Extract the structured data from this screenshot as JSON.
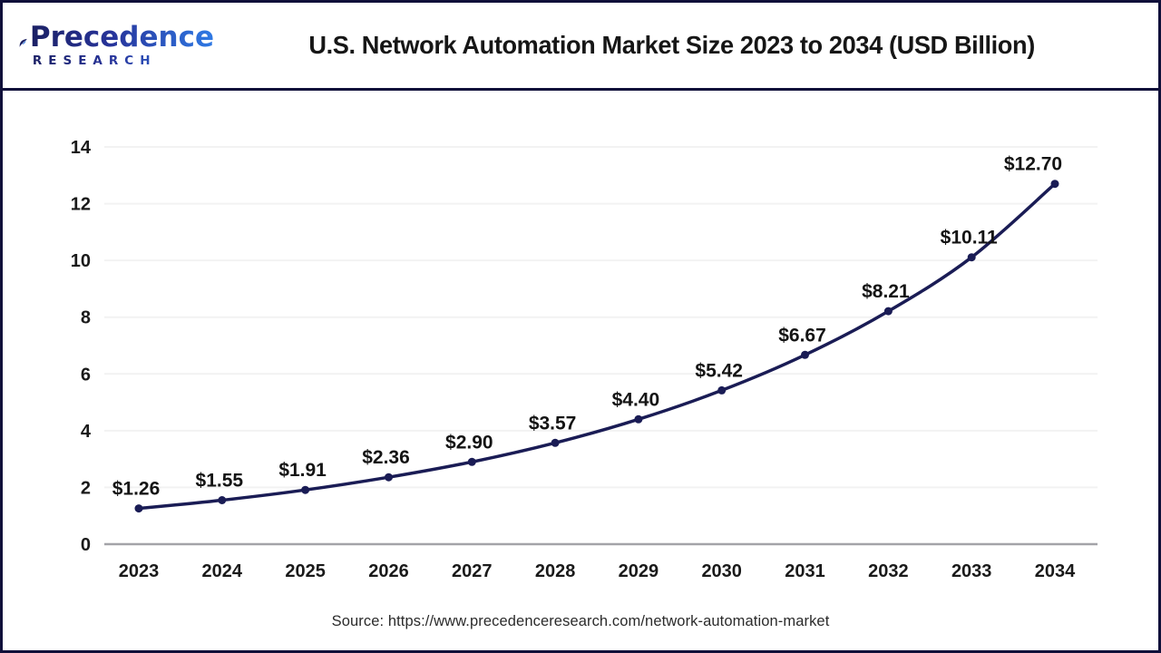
{
  "brand": {
    "name_top": "Precedence",
    "name_bottom": "RESEARCH"
  },
  "header": {
    "title": "U.S. Network Automation Market Size 2023 to 2034 (USD Billion)"
  },
  "footer": {
    "source": "Source: https://www.precedenceresearch.com/network-automation-market"
  },
  "colors": {
    "line": "#1a1c55",
    "marker": "#1a1c55",
    "gridline": "#f2f2f2",
    "axis_line": "#a3a3a8",
    "axis_text": "#1a1a1a",
    "point_label": "#141414",
    "frame_border": "#10103a",
    "logo_dark": "#1b2064",
    "logo_light": "#2f7ae5"
  },
  "chart_data": {
    "type": "line",
    "title": "U.S. Network Automation Market Size 2023 to 2034 (USD Billion)",
    "categories": [
      "2023",
      "2024",
      "2025",
      "2026",
      "2027",
      "2028",
      "2029",
      "2030",
      "2031",
      "2032",
      "2033",
      "2034"
    ],
    "values": [
      1.26,
      1.55,
      1.91,
      2.36,
      2.9,
      3.57,
      4.4,
      5.42,
      6.67,
      8.21,
      10.11,
      12.7
    ],
    "value_labels": [
      "$1.26",
      "$1.55",
      "$1.91",
      "$2.36",
      "$2.90",
      "$3.57",
      "$4.40",
      "$5.42",
      "$6.67",
      "$8.21",
      "$10.11",
      "$12.70"
    ],
    "xlabel": "",
    "ylabel": "",
    "ylim": [
      0,
      14
    ],
    "yticks": [
      0,
      2,
      4,
      6,
      8,
      10,
      12,
      14
    ],
    "grid": true,
    "legend": "none",
    "smooth": true
  }
}
